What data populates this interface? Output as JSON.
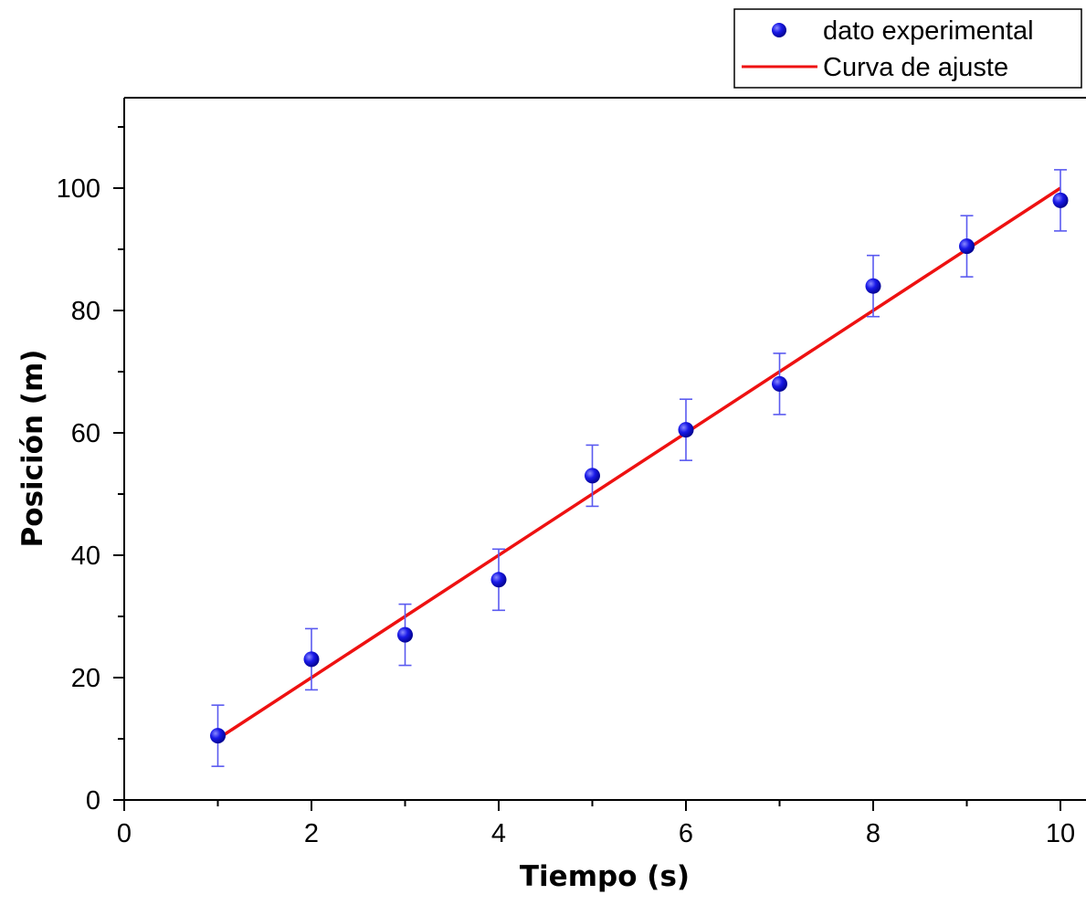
{
  "chart_data": {
    "type": "scatter",
    "xlabel": "Tiempo (s)",
    "ylabel": "Posición (m)",
    "xlim": [
      0,
      10.3
    ],
    "ylim": [
      0,
      110
    ],
    "x_ticks": [
      0,
      2,
      4,
      6,
      8,
      10
    ],
    "y_ticks": [
      0,
      20,
      40,
      60,
      80,
      100
    ],
    "x_minor_step": 1,
    "y_minor_step": 10,
    "grid": false,
    "legend_position": "top-right",
    "colors": {
      "points": "#1515e6",
      "error_bars": "#5a5af0",
      "fit": "#ee1111",
      "axis": "#000000"
    },
    "series": [
      {
        "name": "dato experimental",
        "kind": "scatter",
        "x": [
          1,
          2,
          3,
          4,
          5,
          6,
          7,
          8,
          9,
          10
        ],
        "y": [
          10.5,
          23,
          27,
          36,
          53,
          60.5,
          68,
          84,
          90.5,
          98
        ],
        "error": [
          5,
          5,
          5,
          5,
          5,
          5,
          5,
          5,
          5,
          5
        ]
      },
      {
        "name": "Curva de ajuste",
        "kind": "line",
        "x": [
          1,
          10
        ],
        "y": [
          10,
          100
        ]
      }
    ]
  }
}
